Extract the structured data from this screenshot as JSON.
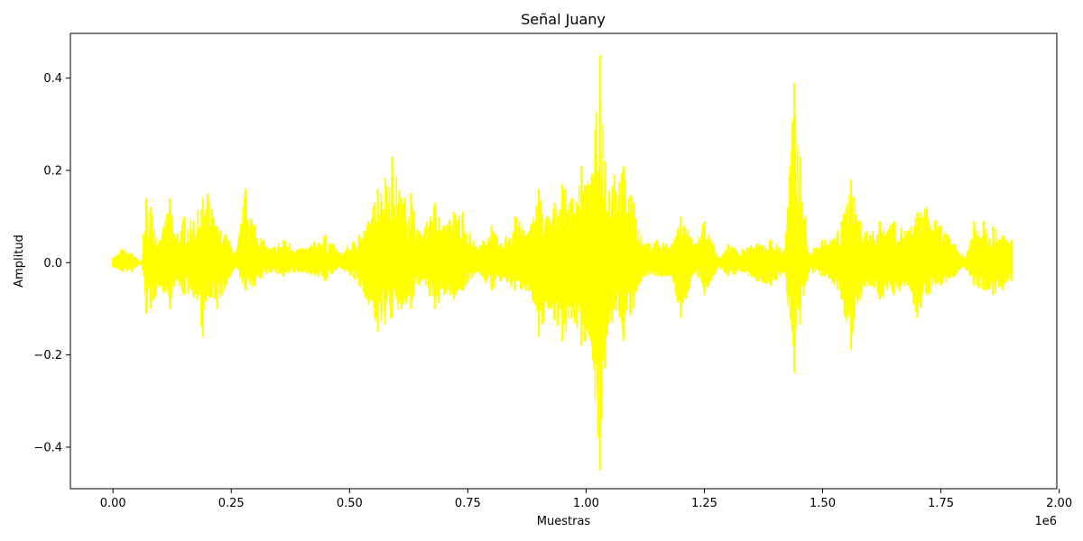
{
  "chart_data": {
    "type": "line",
    "title": "Señal Juany",
    "xlabel": "Muestras",
    "ylabel": "Amplitud",
    "x_offset_text": "1e6",
    "xlim": [
      -0.09,
      1.995
    ],
    "ylim": [
      -0.49,
      0.497
    ],
    "x_ticks": [
      0.0,
      0.25,
      0.5,
      0.75,
      1.0,
      1.25,
      1.5,
      1.75,
      2.0
    ],
    "x_tick_labels": [
      "0.00",
      "0.25",
      "0.50",
      "0.75",
      "1.00",
      "1.25",
      "1.50",
      "1.75",
      "2.00"
    ],
    "y_ticks": [
      -0.4,
      -0.2,
      0.0,
      0.2,
      0.4
    ],
    "y_tick_labels": [
      "−0.4",
      "−0.2",
      "0.0",
      "0.2",
      "0.4"
    ],
    "grid": false,
    "color": "#ffff00",
    "series": [
      {
        "x": [
          0.0,
          0.02,
          0.04,
          0.06,
          0.07,
          0.08,
          0.1,
          0.12,
          0.13,
          0.15,
          0.17,
          0.19,
          0.2,
          0.22,
          0.24,
          0.26,
          0.28,
          0.3,
          0.33,
          0.36,
          0.4,
          0.45,
          0.48,
          0.52,
          0.54,
          0.56,
          0.59,
          0.61,
          0.63,
          0.65,
          0.68,
          0.7,
          0.72,
          0.74,
          0.77,
          0.8,
          0.82,
          0.85,
          0.88,
          0.9,
          0.92,
          0.95,
          0.97,
          0.99,
          1.01,
          1.03,
          1.04,
          1.06,
          1.08,
          1.1,
          1.12,
          1.15,
          1.18,
          1.2,
          1.23,
          1.25,
          1.28,
          1.3,
          1.33,
          1.36,
          1.39,
          1.42,
          1.44,
          1.47,
          1.5,
          1.52,
          1.54,
          1.56,
          1.58,
          1.6,
          1.62,
          1.65,
          1.68,
          1.7,
          1.72,
          1.75,
          1.78,
          1.8,
          1.82,
          1.84,
          1.86,
          1.88,
          1.9
        ],
        "y_max": [
          0.01,
          0.03,
          0.02,
          0.0,
          0.14,
          0.12,
          0.05,
          0.14,
          0.06,
          0.1,
          0.09,
          0.14,
          0.15,
          0.08,
          0.06,
          0.02,
          0.16,
          0.08,
          0.03,
          0.05,
          0.03,
          0.06,
          0.02,
          0.06,
          0.09,
          0.16,
          0.23,
          0.14,
          0.15,
          0.06,
          0.13,
          0.08,
          0.11,
          0.11,
          0.03,
          0.08,
          0.04,
          0.1,
          0.07,
          0.16,
          0.1,
          0.17,
          0.14,
          0.21,
          0.17,
          0.45,
          0.22,
          0.19,
          0.21,
          0.13,
          0.04,
          0.05,
          0.04,
          0.1,
          0.04,
          0.09,
          0.01,
          0.04,
          0.03,
          0.04,
          0.05,
          0.03,
          0.39,
          0.02,
          0.05,
          0.05,
          0.09,
          0.18,
          0.09,
          0.06,
          0.09,
          0.09,
          0.07,
          0.11,
          0.12,
          0.08,
          0.04,
          0.01,
          0.09,
          0.09,
          0.08,
          0.06,
          0.05
        ],
        "y_min": [
          -0.01,
          -0.02,
          -0.02,
          0.0,
          -0.11,
          -0.1,
          -0.05,
          -0.1,
          -0.05,
          -0.07,
          -0.07,
          -0.16,
          -0.07,
          -0.1,
          -0.05,
          -0.01,
          -0.06,
          -0.05,
          -0.02,
          -0.03,
          -0.02,
          -0.04,
          -0.01,
          -0.05,
          -0.09,
          -0.15,
          -0.12,
          -0.1,
          -0.1,
          -0.04,
          -0.1,
          -0.07,
          -0.08,
          -0.06,
          -0.02,
          -0.06,
          -0.04,
          -0.06,
          -0.06,
          -0.16,
          -0.1,
          -0.17,
          -0.12,
          -0.18,
          -0.17,
          -0.45,
          -0.23,
          -0.1,
          -0.17,
          -0.1,
          -0.03,
          -0.03,
          -0.03,
          -0.12,
          -0.02,
          -0.07,
          -0.01,
          -0.03,
          -0.02,
          -0.04,
          -0.05,
          -0.02,
          -0.24,
          -0.02,
          -0.03,
          -0.04,
          -0.08,
          -0.19,
          -0.08,
          -0.05,
          -0.08,
          -0.07,
          -0.05,
          -0.12,
          -0.07,
          -0.05,
          -0.03,
          -0.01,
          -0.05,
          -0.06,
          -0.07,
          -0.06,
          -0.04
        ]
      }
    ]
  }
}
